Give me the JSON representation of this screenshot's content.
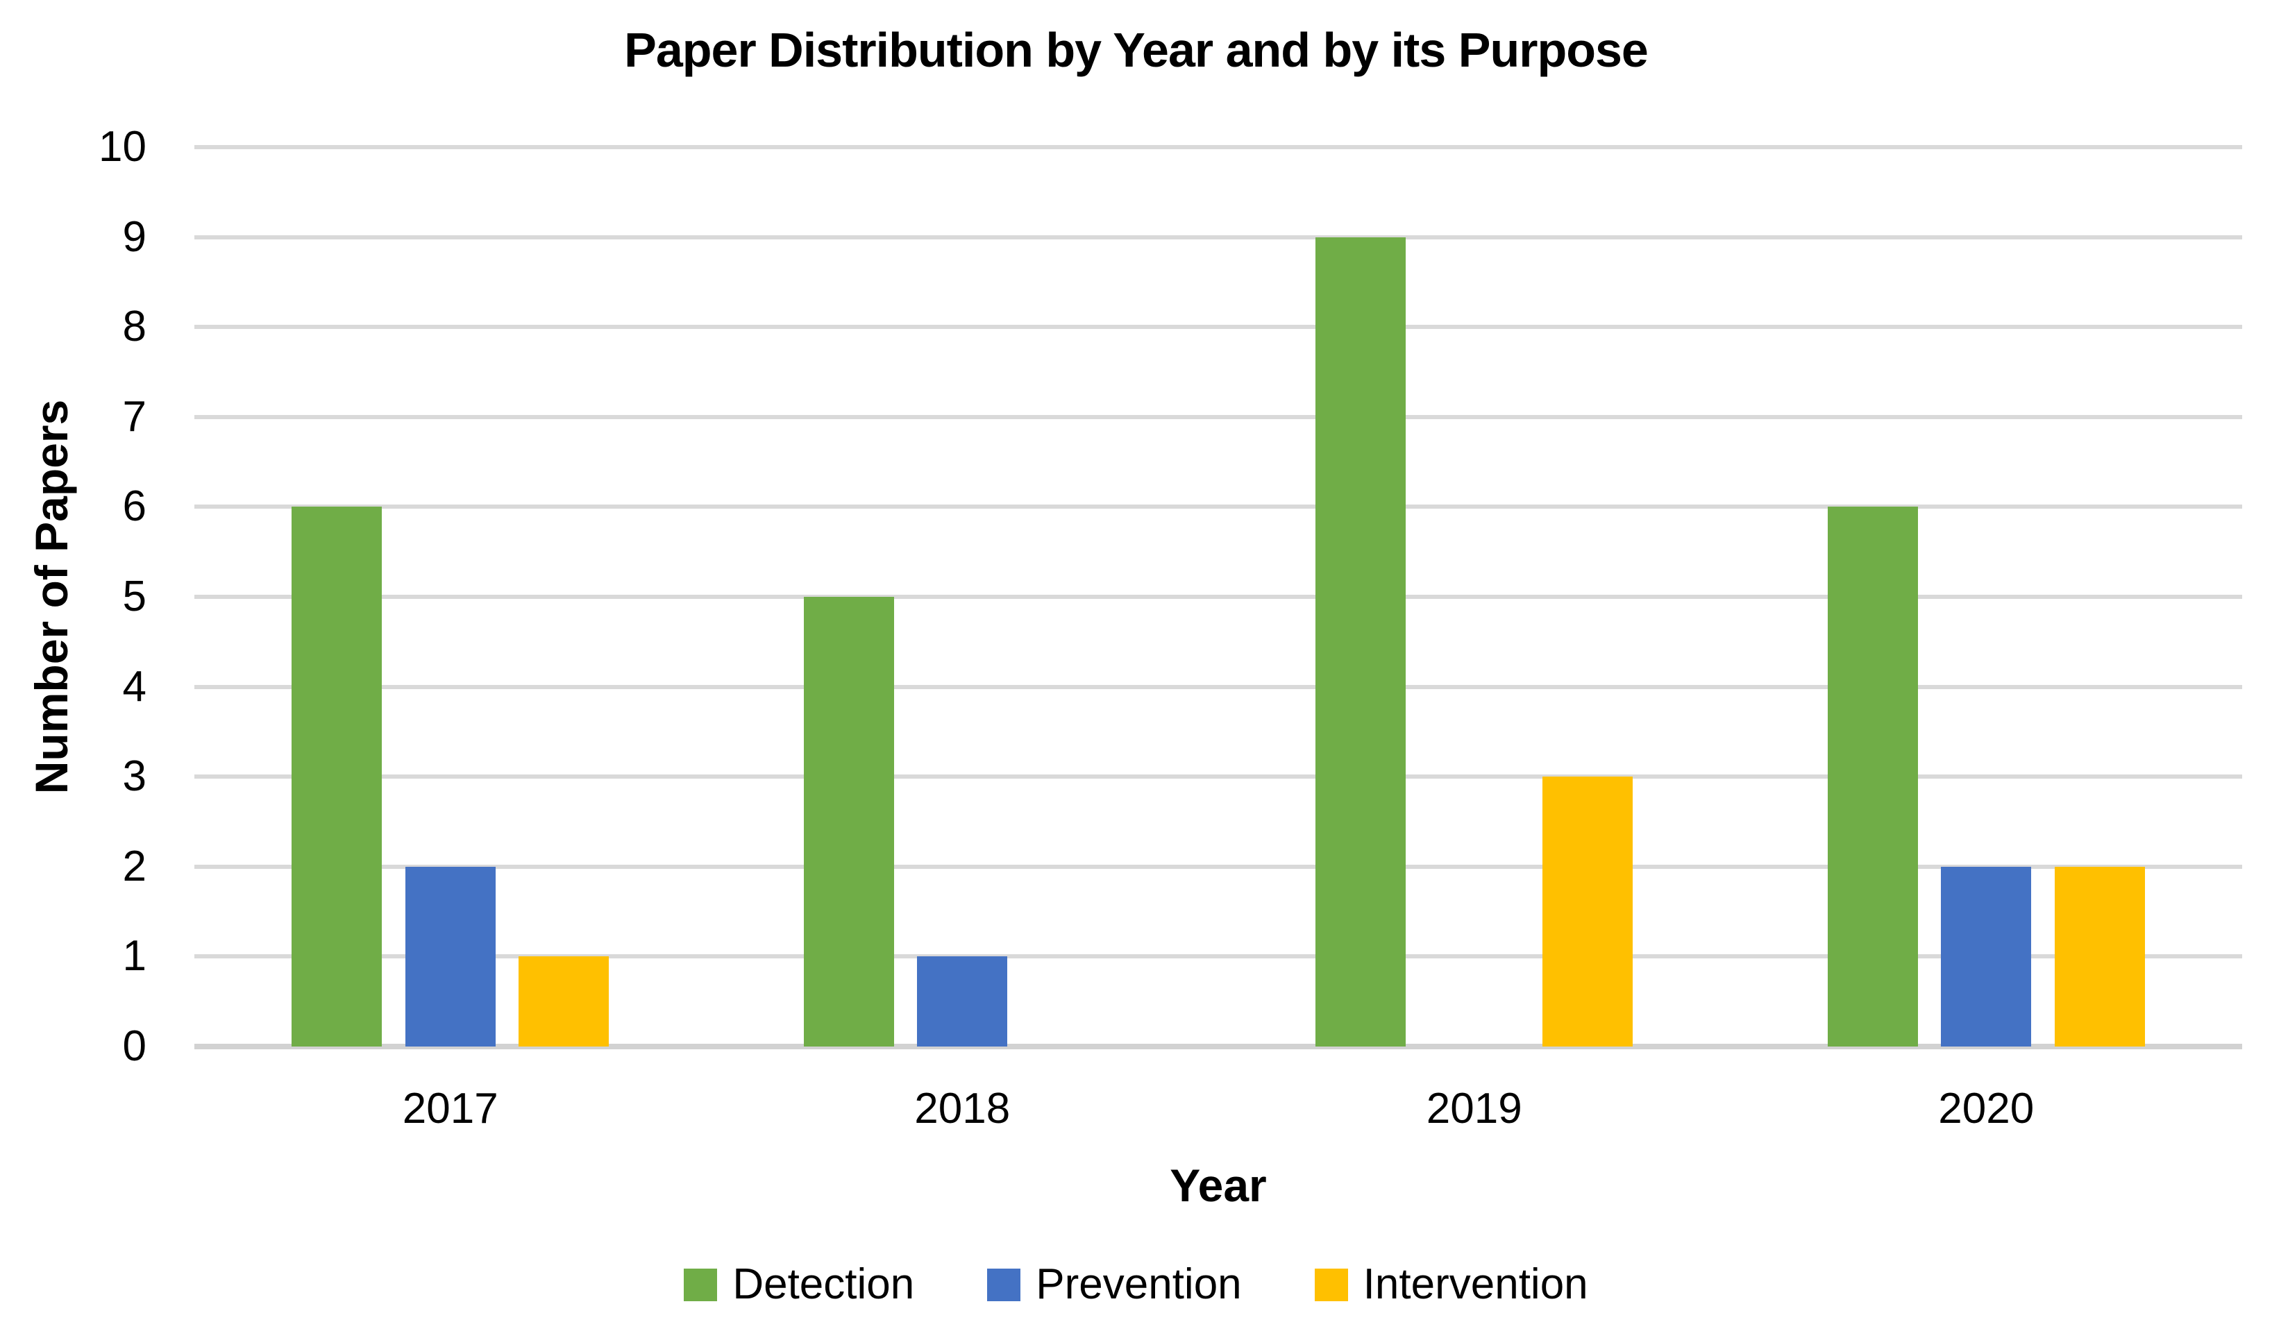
{
  "page": {
    "background": "#ffffff",
    "text_color": "#000000"
  },
  "chart_data": {
    "type": "bar",
    "title": "Paper Distribution by Year and by its Purpose",
    "xlabel": "Year",
    "ylabel": "Number of Papers",
    "categories": [
      "2017",
      "2018",
      "2019",
      "2020"
    ],
    "series": [
      {
        "name": "Detection",
        "color": "#70AD47",
        "values": [
          6,
          5,
          9,
          6
        ]
      },
      {
        "name": "Prevention",
        "color": "#4472C4",
        "values": [
          2,
          1,
          0,
          2
        ]
      },
      {
        "name": "Intervention",
        "color": "#FFC000",
        "values": [
          1,
          0,
          3,
          2
        ]
      }
    ],
    "ylim": [
      0,
      10
    ],
    "ytick_step": 1,
    "grid": "horizontal",
    "gridline_color": "#D9D9D9",
    "axis_line_color": "#D2D2D2",
    "legend_position": "bottom-center"
  }
}
